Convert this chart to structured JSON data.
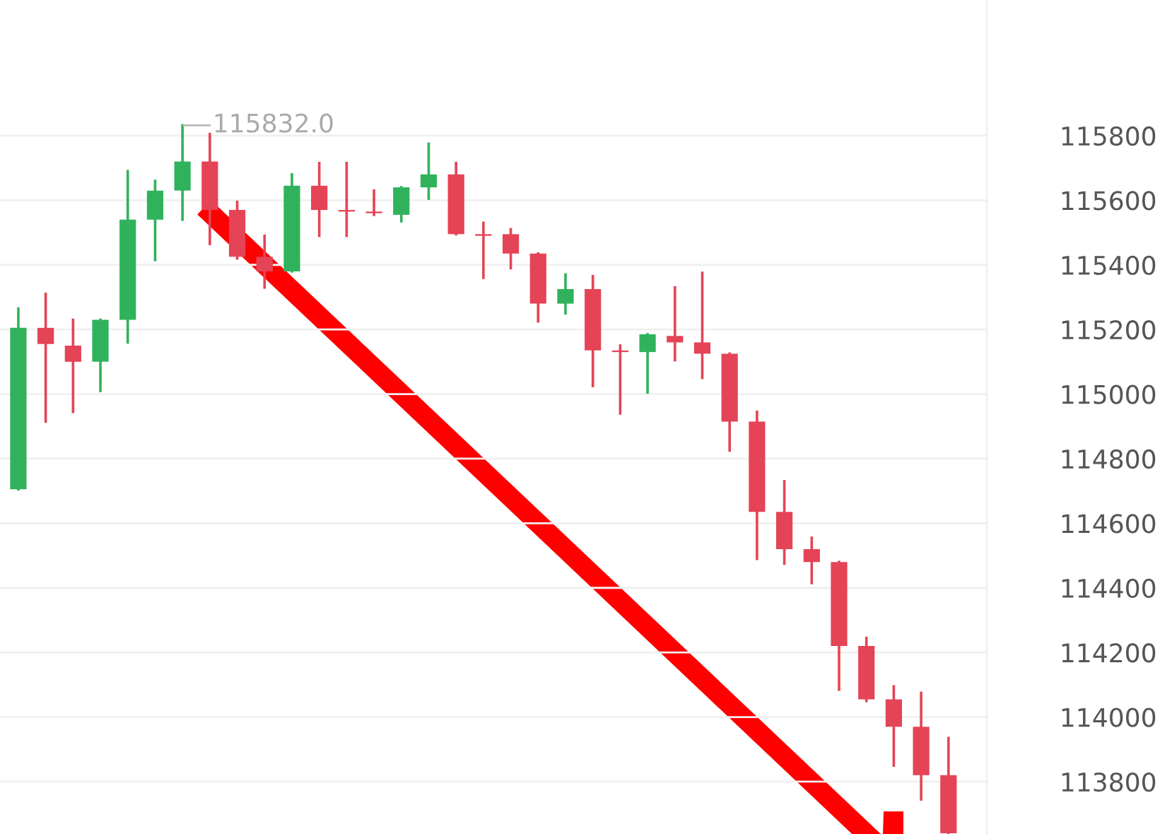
{
  "chart_data": {
    "type": "candlestick",
    "categories": [
      null,
      null,
      null,
      null,
      null,
      null,
      null,
      null,
      null,
      null,
      null,
      null,
      null,
      null,
      null,
      null,
      null,
      null,
      null,
      null,
      null,
      null,
      null,
      null,
      null,
      null,
      null,
      null,
      null,
      null,
      null,
      null,
      null,
      null,
      null
    ],
    "ohlc": [
      [
        114705,
        115265,
        114705,
        115205
      ],
      [
        115205,
        115310,
        114915,
        115155
      ],
      [
        115150,
        115230,
        114945,
        115100
      ],
      [
        115100,
        115230,
        115010,
        115230
      ],
      [
        115230,
        115690,
        115160,
        115540
      ],
      [
        115540,
        115660,
        115415,
        115630
      ],
      [
        115630,
        115832,
        115540,
        115720
      ],
      [
        115720,
        115805,
        115465,
        115570
      ],
      [
        115570,
        115595,
        115420,
        115425
      ],
      [
        115425,
        115490,
        115330,
        115380
      ],
      [
        115380,
        115680,
        115380,
        115645
      ],
      [
        115645,
        115715,
        115490,
        115570
      ],
      [
        115570,
        115715,
        115490,
        115565
      ],
      [
        115565,
        115630,
        115555,
        115560
      ],
      [
        115555,
        115640,
        115535,
        115640
      ],
      [
        115640,
        115775,
        115605,
        115680
      ],
      [
        115680,
        115715,
        115495,
        115495
      ],
      [
        115495,
        115530,
        115360,
        115490
      ],
      [
        115495,
        115510,
        115390,
        115435
      ],
      [
        115435,
        115435,
        115225,
        115280
      ],
      [
        115280,
        115370,
        115250,
        115325
      ],
      [
        115325,
        115365,
        115025,
        115135
      ],
      [
        115135,
        115150,
        114940,
        115130
      ],
      [
        115130,
        115185,
        115005,
        115185
      ],
      [
        115180,
        115330,
        115105,
        115160
      ],
      [
        115160,
        115375,
        115050,
        115125
      ],
      [
        115125,
        115125,
        114825,
        114915
      ],
      [
        114915,
        114945,
        114490,
        114635
      ],
      [
        114635,
        114730,
        114475,
        114520
      ],
      [
        114520,
        114555,
        114415,
        114480
      ],
      [
        114480,
        114480,
        114085,
        114220
      ],
      [
        114220,
        114245,
        114050,
        114055
      ],
      [
        114055,
        114095,
        113850,
        113970
      ],
      [
        113970,
        114075,
        113745,
        113820
      ],
      [
        113820,
        113935,
        113640,
        113640
      ]
    ],
    "colors": [
      "#30b25c",
      "#e44456",
      "#e44456",
      "#30b25c",
      "#30b25c",
      "#30b25c",
      "#30b25c",
      "#e44456",
      "#e44456",
      "#e44456",
      "#30b25c",
      "#e44456",
      "#e44456",
      "#e44456",
      "#30b25c",
      "#30b25c",
      "#e44456",
      "#e44456",
      "#e44456",
      "#e44456",
      "#30b25c",
      "#e44456",
      "#e44456",
      "#30b25c",
      "#e44456",
      "#e44456",
      "#e44456",
      "#e44456",
      "#e44456",
      "#e44456",
      "#e44456",
      "#e44456",
      "#e44456",
      "#e44456",
      "#e44456"
    ],
    "ylim": [
      113638,
      116220
    ],
    "yticks": [
      113800,
      114000,
      114200,
      114400,
      114600,
      114800,
      115000,
      115200,
      115400,
      115600,
      115800
    ],
    "grid": "y",
    "annotations": [
      "115832.0"
    ]
  }
}
